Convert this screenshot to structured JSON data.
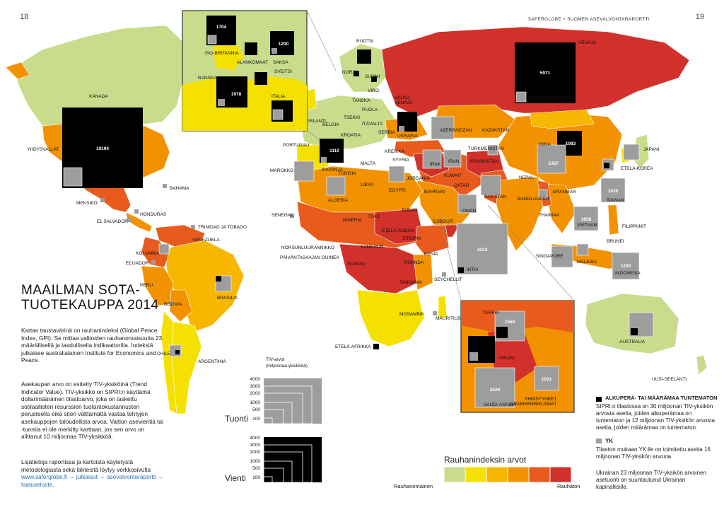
{
  "header": {
    "page_left": "18",
    "page_right": "19",
    "running_title": "SAFERGLOBE + SUOMEN ASEVALVONTARAPORTTI"
  },
  "title": {
    "line1": "MAAILMAN SOTA-",
    "line2": "TUOTEKAUPPA 2014"
  },
  "body": {
    "p1": "Kartan taustavärinä on rauhanindeksi (Global Peace Index, GPI). Se mittaa valtioiden rauhanomaisuutta 23 määrällisellä ja laadullisella indikaattorilla. Indeksiä julkaisee australialainen Institute for Economics and Peace.",
    "p2": "Asekaupan arvo on esitetty TIV-yksiköinä (Trend Indicator Value). TIV-yksikkö on SIPRI:n käyttämä dollarimääräinen tilastoarvo, joka on laskettu sotilaallisten resurssien tuotantokustannusten perusteella eikä siten välttämättä vastaa tehtyjen asekauppojen taloudellista arvoa. Valtion asevientiä tai -tuontia ei ole merkitty karttaan, jos sen arvo on alittanut 10 miljoonaa TIV-yksikköä.",
    "p3_pre": "Lisätietoja raportissa ja kartoista käytetystä metodologiasta sekä lähteistä löytyy verkkosivulta ",
    "p3_link": "www.saferglobe.fi → julkaisut → asevalvontaraportti → laatuseloste."
  },
  "scale_legend": {
    "title": "TIV-arvot\n(miljoonaa yksikköä)",
    "values": [
      "4000",
      "3000",
      "2000",
      "1000",
      "500",
      "100"
    ],
    "import_label": "Tuonti",
    "export_label": "Vienti"
  },
  "gpi_legend": {
    "title": "Rauhanindeksin arvot",
    "low_label": "Rauhanomainen",
    "high_label": "Rauhaton",
    "colors": [
      "#c8dc8c",
      "#f5e100",
      "#f7b600",
      "#f39200",
      "#e95a1d",
      "#d2302a"
    ]
  },
  "notes": {
    "origin_title": "ALKUPERÄ- TAI MÄÄRÄMAA TUNTEMATON",
    "origin_text": "SIPRI:n tilastossa on 30 miljoonan TIV-yksikön arvosta aseita, joiden alkuperämaa on tuntematon ja 12 miljoonan TIV-yksikön arvosta aseita, joiden määrämaa on tuntematon.",
    "un_title": "YK",
    "un_text": "Tilaston mukaan YK:lle on toimitettu aseita 16 miljoonan TIV-yksikön arvosta.",
    "ukraine_text": "Ukrainan 23 miljoonan TIV-yksikön arvoinen asetuonti on suuntautunut Ukrainan kapinallisille."
  },
  "countries": {
    "usa": "YHDYSVALLAT",
    "usa_val": "10194",
    "russia": "VENÄJÄ",
    "russia_val": "5971",
    "china": "KIINA",
    "china_val": "1083",
    "china_imp": "1357",
    "india": "INTIA",
    "india_val": "4243",
    "uk": "ISO-BRITANNIA",
    "uk_val": "1704",
    "germany": "SAKSA",
    "germany_val": "1200",
    "france": "RANSKA",
    "france_val": "1978",
    "spain": "ESPANJA",
    "spain_val": "1110",
    "taiwan": "TAIWAN",
    "taiwan_val": "1039",
    "vietnam": "VIETNAM",
    "vietnam_val": "1058",
    "indonesia": "INDONESIA",
    "indonesia_val": "1200",
    "turkey": "TURKKI",
    "turkey_val": "1550",
    "saudi": "SAUDI-ARABIA",
    "saudi_val": "2629",
    "uae": "YHDISTYNEET\nARABIEMIIRIKUNNAT",
    "uae_val": "1031",
    "canada": "KANADA",
    "bahama": "BAHAMA",
    "mexico": "MEKSIKO",
    "honduras": "HONDURAS",
    "elsalvador": "EL SALVADOR",
    "trinidad": "TRINIDAD JA TOBAGO",
    "venezuela": "VENEZUELA",
    "colombia": "KOLUMBIA",
    "ecuador": "ECUADOR",
    "peru": "PERU",
    "brazil": "BRASILIA",
    "bolivia": "BOLIVIA",
    "chile": "CHILE",
    "argentina": "ARGENTIINA",
    "netherlands": "ALANKOMAAT",
    "switzerland": "SVEITSI",
    "italy": "ITALIA",
    "sweden": "RUOTSI",
    "norway": "NORJA",
    "finland": "SUOMI",
    "estonia": "VIRO",
    "denmark": "TANSKA",
    "belarus": "VALKO-\nVENÄJÄ",
    "ireland": "IRLANTI",
    "belgium": "BELGIA",
    "czech": "TSEKKI",
    "poland": "PUOLA",
    "austria": "ITÄVALTA",
    "croatia": "KROATIA",
    "serbia": "SERBIA",
    "ukraine": "UKRAINA",
    "portugal": "PORTUGALI",
    "greece": "KREIKKA",
    "malta": "MALTA",
    "azerbaijan": "AZERBAIDZAN",
    "kazakhstan": "KAZAKSTAN",
    "turkmenistan": "TURKMENISTAN",
    "syria": "SYYRIA",
    "iraq": "IRAK",
    "iran": "IRAN",
    "afghanistan": "AFGANISTAN",
    "kuwait": "KUWAIT",
    "jordan": "JORDANIA",
    "bahrain": "BAHRAIN",
    "qatar": "QATAR",
    "nepal": "NEPAL",
    "pakistan": "PAKISTAN",
    "oman": "OMAN",
    "bangladesh": "BANGLADESH",
    "myanmar": "MYANMAR",
    "thailand": "THAIMAA",
    "japan": "JAPANI",
    "skorea": "ETELÄ-KOREA",
    "philippines": "FILIPPIINIT",
    "brunei": "BRUNEI",
    "malaysia": "MALESIA",
    "singapore": "SINGAPORE",
    "morocco": "MAROKKO",
    "tunisia": "TUNISIA",
    "libya": "LIBYA",
    "algeria": "ALGERIA",
    "egypt": "EGYPTI",
    "senegal": "SENEGAL",
    "nigeria": "NIGERIA",
    "chad": "TSAD",
    "sudan": "SUDAN",
    "ssudan": "ETELÄ-SUDAN",
    "ethiopia": "ETIOPIA",
    "djibouti": "DJIBOUTI",
    "ivorycoast": "NORSUNLUURANNIKKO",
    "eqguinea": "PÄIVÄNTASAAJAN GUINEA",
    "cameroon": "KAMERUN",
    "congo": "KONGO",
    "kenya": "KENIA",
    "rwanda": "RUANDA",
    "tanzania": "TANSANIA",
    "seychelles": "SEYCHELLIT",
    "mozambique": "MOSAMBIK",
    "mauritius": "MAURITIUS",
    "southafrica": "ETELÄ-AFRIKKA",
    "israel": "ISRAEL",
    "australia": "AUSTRALIA",
    "newzealand": "UUSI-SEELANTI"
  }
}
